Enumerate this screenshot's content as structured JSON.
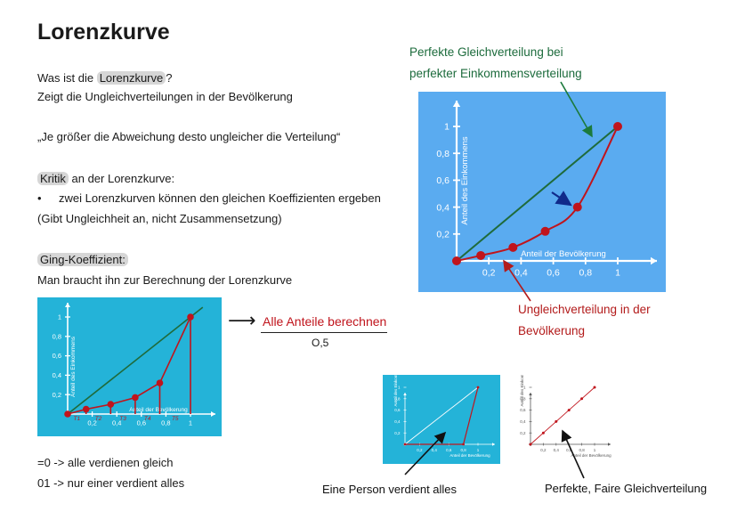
{
  "title": "Lorenzkurve",
  "intro": {
    "q_prefix": "Was ist die ",
    "q_highlight": "Lorenzkurve",
    "q_suffix": "?",
    "line2": "Zeigt die Ungleichverteilungen in der Bevölkerung",
    "quote": "„Je größer die Abweichung desto ungleicher die Verteilung“"
  },
  "kritik": {
    "highlight": "Kritik",
    "suffix": " an der Lorenzkurve:",
    "bullet": "•",
    "bullet_text": "zwei Lorenzkurven können den gleichen Koeffizienten ergeben",
    "line2": "(Gibt Ungleichheit an, nicht Zusammensetzung)"
  },
  "gini": {
    "highlight": "Ging-Koeffizient:",
    "line": "Man braucht ihn zur Berechnung der Lorenzkurve",
    "arrow": "⟶",
    "fraction_num": "Alle Anteile berechnen",
    "fraction_den": "O,5",
    "zero": "=0 -> alle verdienen gleich",
    "one": "01 -> nur einer verdient alles"
  },
  "annotations": {
    "green_line1": "Perfekte Gleichverteilung bei",
    "green_line2": "perfekter Einkommensverteilung",
    "red_line1": "Ungleichverteilung in der",
    "red_line2": "Bevölkerung",
    "one_person": "Eine Person verdient alles",
    "fair": "Perfekte, Faire Gleichverteilung"
  },
  "colors": {
    "panel_blue": "#5aabf0",
    "panel_cyan": "#24b3d8",
    "green_line": "#1f6b3b",
    "red_curve": "#c0141c",
    "axis": "#ffffff"
  },
  "chart_data": [
    {
      "type": "line",
      "xlabel": "Anteil der Bevölkerung",
      "ylabel": "Anteil des Einkommens",
      "xticks": [
        "0,2",
        "0,4",
        "0,6",
        "0,8",
        "1"
      ],
      "yticks": [
        "0,2",
        "0,4",
        "0,6",
        "0,8",
        "1"
      ],
      "xlim": [
        0,
        1.1
      ],
      "ylim": [
        0,
        1.1
      ],
      "series": [
        {
          "x": [
            0,
            1
          ],
          "y": [
            0,
            1
          ]
        },
        {
          "x": [
            0,
            0.15,
            0.35,
            0.55,
            0.75,
            1.0
          ],
          "y": [
            0,
            0.04,
            0.1,
            0.22,
            0.4,
            1.0
          ]
        }
      ]
    },
    {
      "type": "line",
      "xlabel": "Anteil der Bevölkerung",
      "ylabel": "Anteil des Einkommens",
      "xticks": [
        "0,2",
        "0,4",
        "0,6",
        "0,8",
        "1"
      ],
      "yticks": [
        "0,2",
        "0,4",
        "0,6",
        "0,8",
        "1"
      ],
      "segment_labels": [
        "T1",
        "T2",
        "T3",
        "T4",
        "T5"
      ],
      "xlim": [
        0,
        1.1
      ],
      "ylim": [
        0,
        1.1
      ],
      "series": [
        {
          "x": [
            0,
            1.1
          ],
          "y": [
            0,
            1.1
          ]
        },
        {
          "x": [
            0,
            0.15,
            0.35,
            0.55,
            0.75,
            1.0
          ],
          "y": [
            0,
            0.05,
            0.1,
            0.17,
            0.32,
            1.0
          ]
        }
      ]
    },
    {
      "type": "line",
      "xlabel": "Anteil der Bevölkerung",
      "ylabel": "Anteil des Einkommens",
      "xticks": [
        "0,2",
        "0,4",
        "0,6",
        "0,8",
        "1"
      ],
      "yticks": [
        "0,2",
        "0,4",
        "0,6",
        "0,8",
        "1"
      ],
      "xlim": [
        0,
        1.1
      ],
      "ylim": [
        0,
        1.1
      ],
      "series": [
        {
          "x": [
            0,
            1
          ],
          "y": [
            0,
            1
          ]
        },
        {
          "x": [
            0,
            0.8,
            1.0
          ],
          "y": [
            0,
            0,
            1
          ]
        }
      ]
    },
    {
      "type": "line",
      "xlabel": "Anteil der Bevölkerung",
      "ylabel": "Anteil des Einkommens",
      "xticks": [
        "0,2",
        "0,4",
        "0,6",
        "0,8",
        "1"
      ],
      "yticks": [
        "0,2",
        "0,4",
        "0,6",
        "0,8",
        "1"
      ],
      "xlim": [
        0,
        1.1
      ],
      "ylim": [
        0,
        1.1
      ],
      "series": [
        {
          "x": [
            0,
            0.2,
            0.4,
            0.6,
            0.8,
            1.0
          ],
          "y": [
            0,
            0.2,
            0.4,
            0.6,
            0.8,
            1.0
          ]
        }
      ]
    }
  ]
}
